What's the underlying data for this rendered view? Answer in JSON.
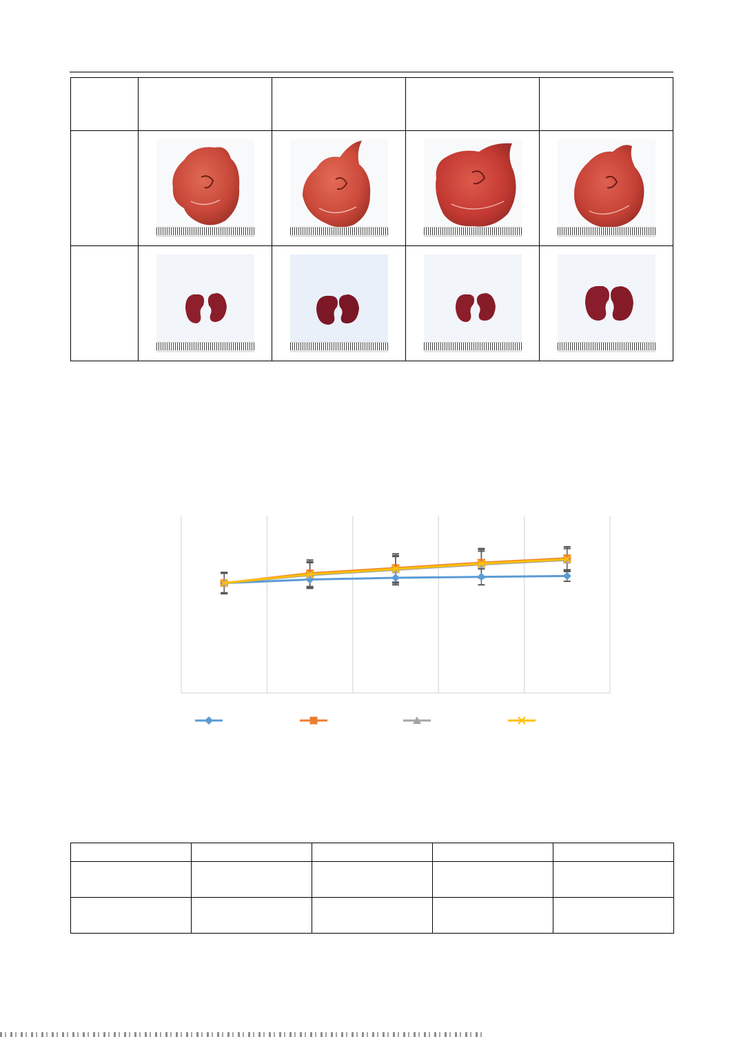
{
  "figure_table": {
    "header_cells": [
      "",
      "",
      "",
      "",
      ""
    ],
    "rows": [
      {
        "label": "",
        "organ": "liver-photo"
      },
      {
        "label": "",
        "organ": "kidney-photo"
      }
    ]
  },
  "chart_data": {
    "type": "line",
    "title": "",
    "xlabel": "",
    "ylabel": "",
    "categories": [
      "",
      "",
      "",
      "",
      ""
    ],
    "grid": "vertical",
    "legend": "bottom",
    "ylim": [
      0,
      10
    ],
    "series": [
      {
        "color": "#5b9bd5",
        "marker": "diamond",
        "values": [
          6.2,
          6.4,
          6.5,
          6.55,
          6.6
        ],
        "err": [
          0.6,
          0.5,
          0.4,
          0.45,
          0.3
        ]
      },
      {
        "color": "#ed7d31",
        "marker": "square",
        "values": [
          6.2,
          6.75,
          7.05,
          7.35,
          7.6
        ],
        "err": [
          0.6,
          0.75,
          0.8,
          0.8,
          0.65
        ]
      },
      {
        "color": "#a5a5a5",
        "marker": "triangle",
        "values": [
          6.2,
          6.65,
          6.95,
          7.25,
          7.5
        ],
        "err": [
          0.55,
          0.7,
          0.75,
          0.75,
          0.65
        ]
      },
      {
        "color": "#ffc000",
        "marker": "cross",
        "values": [
          6.2,
          6.7,
          7.0,
          7.3,
          7.55
        ],
        "err": [
          0.55,
          0.7,
          0.75,
          0.8,
          0.6
        ]
      }
    ]
  },
  "data_table": {
    "header": [
      "",
      "",
      "",
      "",
      ""
    ],
    "rows": [
      [
        "",
        "",
        "",
        "",
        ""
      ],
      [
        "",
        "",
        "",
        "",
        ""
      ]
    ]
  }
}
